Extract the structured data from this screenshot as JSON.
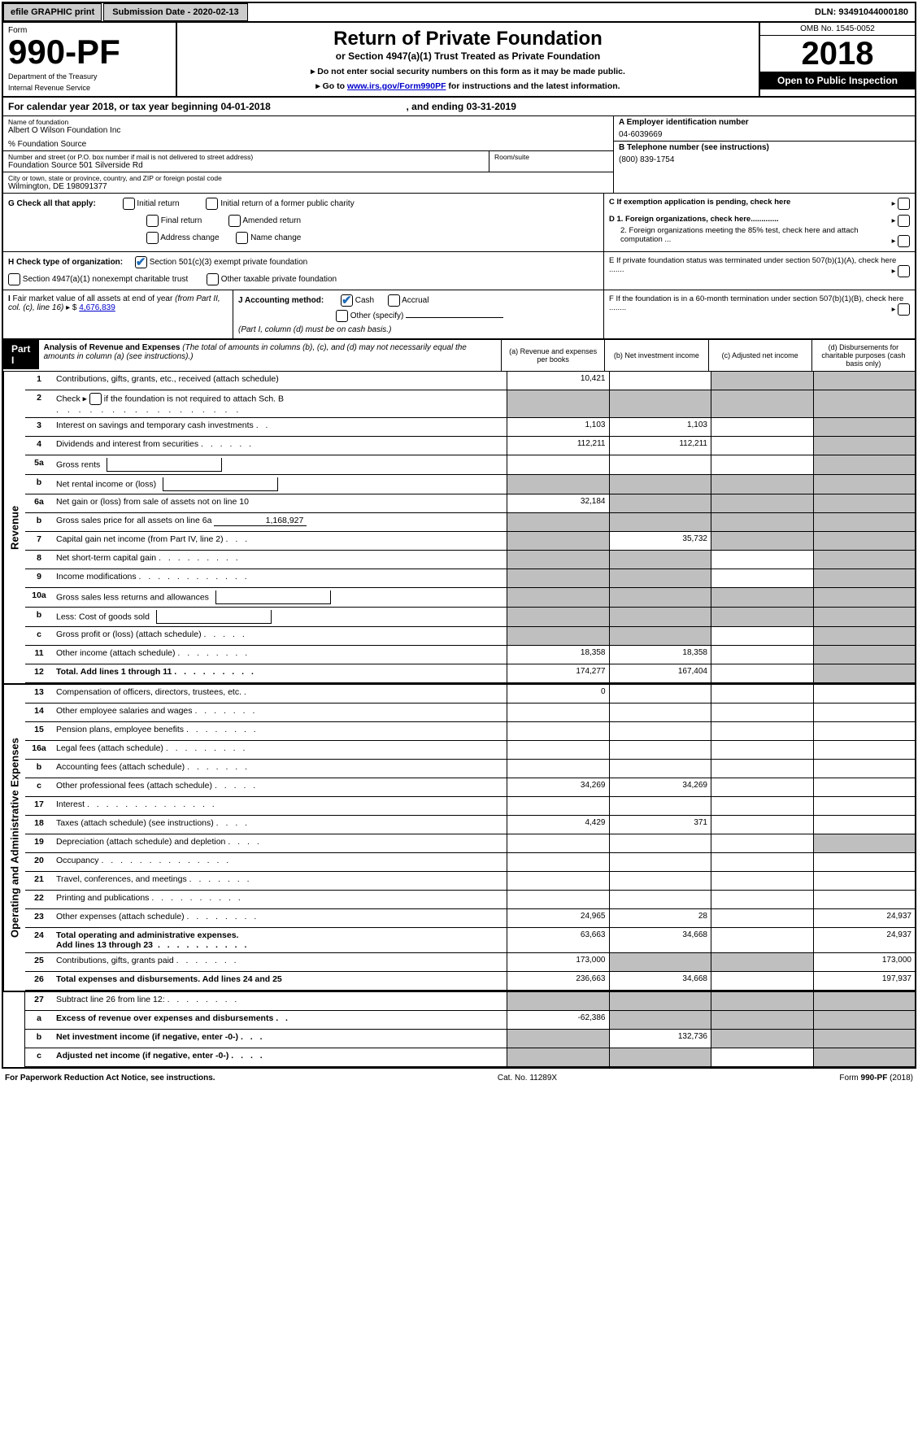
{
  "topbar": {
    "efile": "efile GRAPHIC print",
    "submission_label": "Submission Date - 2020-02-13",
    "dln": "DLN: 93491044000180"
  },
  "header": {
    "form_label": "Form",
    "form_number": "990-PF",
    "dept": "Department of the Treasury",
    "irs": "Internal Revenue Service",
    "title": "Return of Private Foundation",
    "subtitle": "or Section 4947(a)(1) Trust Treated as Private Foundation",
    "instr1": "▸ Do not enter social security numbers on this form as it may be made public.",
    "instr2_pre": "▸ Go to ",
    "instr2_link": "www.irs.gov/Form990PF",
    "instr2_post": " for instructions and the latest information.",
    "omb": "OMB No. 1545-0052",
    "year": "2018",
    "open": "Open to Public Inspection"
  },
  "cal": {
    "text_pre": "For calendar year 2018, or tax year beginning 04-01-2018",
    "text_mid": ", and ending 03-31-2019"
  },
  "entity": {
    "name_lbl": "Name of foundation",
    "name": "Albert O Wilson Foundation Inc",
    "care_of": "% Foundation Source",
    "addr_lbl": "Number and street (or P.O. box number if mail is not delivered to street address)",
    "addr": "Foundation Source 501 Silverside Rd",
    "room_lbl": "Room/suite",
    "city_lbl": "City or town, state or province, country, and ZIP or foreign postal code",
    "city": "Wilmington, DE  198091377",
    "ein_lbl": "A Employer identification number",
    "ein": "04-6039669",
    "phone_lbl": "B Telephone number (see instructions)",
    "phone": "(800) 839-1754",
    "c_text": "C If exemption application is pending, check here",
    "d1": "D 1. Foreign organizations, check here.............",
    "d2": "2. Foreign organizations meeting the 85% test, check here and attach computation ...",
    "e_text": "E  If private foundation status was terminated under section 507(b)(1)(A), check here .......",
    "f_text": "F  If the foundation is in a 60-month termination under section 507(b)(1)(B), check here ........"
  },
  "g": {
    "label": "G Check all that apply:",
    "opts": {
      "initial": "Initial return",
      "initial_former": "Initial return of a former public charity",
      "final": "Final return",
      "amended": "Amended return",
      "addr_change": "Address change",
      "name_change": "Name change"
    }
  },
  "h": {
    "label": "H Check type of organization:",
    "opt1": "Section 501(c)(3) exempt private foundation",
    "opt2": "Section 4947(a)(1) nonexempt charitable trust",
    "opt3": "Other taxable private foundation"
  },
  "i": {
    "label": "I Fair market value of all assets at end of year (from Part II, col. (c), line 16) ▸ $",
    "value": "4,676,839"
  },
  "j": {
    "label": "J Accounting method:",
    "cash": "Cash",
    "accrual": "Accrual",
    "other": "Other (specify)",
    "note": "(Part I, column (d) must be on cash basis.)"
  },
  "part1": {
    "label": "Part I",
    "title": "Analysis of Revenue and Expenses",
    "title_note": "(The total of amounts in columns (b), (c), and (d) may not necessarily equal the amounts in column (a) (see instructions).)",
    "col_a": "(a)   Revenue and expenses per books",
    "col_b": "(b)  Net investment income",
    "col_c": "(c)  Adjusted net income",
    "col_d": "(d)  Disbursements for charitable purposes (cash basis only)"
  },
  "rev_lbl": "Revenue",
  "opex_lbl": "Operating and Administrative Expenses",
  "lines": {
    "l1": {
      "n": "1",
      "d": "Contributions, gifts, grants, etc., received (attach schedule)",
      "a": "10,421"
    },
    "l2": {
      "n": "2",
      "d_pre": "Check ▸ ",
      "d_post": " if the foundation is not required to attach Sch. B",
      "dots": true
    },
    "l3": {
      "n": "3",
      "d": "Interest on savings and temporary cash investments",
      "a": "1,103",
      "b": "1,103"
    },
    "l4": {
      "n": "4",
      "d": "Dividends and interest from securities",
      "a": "112,211",
      "b": "112,211"
    },
    "l5a": {
      "n": "5a",
      "d": "Gross rents"
    },
    "l5b": {
      "n": "b",
      "d": "Net rental income or (loss)"
    },
    "l6a": {
      "n": "6a",
      "d": "Net gain or (loss) from sale of assets not on line 10",
      "a": "32,184"
    },
    "l6b": {
      "n": "b",
      "d": "Gross sales price for all assets on line 6a",
      "val": "1,168,927"
    },
    "l7": {
      "n": "7",
      "d": "Capital gain net income (from Part IV, line 2)",
      "b": "35,732"
    },
    "l8": {
      "n": "8",
      "d": "Net short-term capital gain"
    },
    "l9": {
      "n": "9",
      "d": "Income modifications"
    },
    "l10a": {
      "n": "10a",
      "d": "Gross sales less returns and allowances"
    },
    "l10b": {
      "n": "b",
      "d": "Less: Cost of goods sold"
    },
    "l10c": {
      "n": "c",
      "d": "Gross profit or (loss) (attach schedule)"
    },
    "l11": {
      "n": "11",
      "d": "Other income (attach schedule)",
      "a": "18,358",
      "b": "18,358"
    },
    "l12": {
      "n": "12",
      "d": "Total. Add lines 1 through 11",
      "a": "174,277",
      "b": "167,404",
      "bold": true
    },
    "l13": {
      "n": "13",
      "d": "Compensation of officers, directors, trustees, etc.",
      "a": "0"
    },
    "l14": {
      "n": "14",
      "d": "Other employee salaries and wages"
    },
    "l15": {
      "n": "15",
      "d": "Pension plans, employee benefits"
    },
    "l16a": {
      "n": "16a",
      "d": "Legal fees (attach schedule)"
    },
    "l16b": {
      "n": "b",
      "d": "Accounting fees (attach schedule)"
    },
    "l16c": {
      "n": "c",
      "d": "Other professional fees (attach schedule)",
      "a": "34,269",
      "b": "34,269"
    },
    "l17": {
      "n": "17",
      "d": "Interest"
    },
    "l18": {
      "n": "18",
      "d": "Taxes (attach schedule) (see instructions)",
      "a": "4,429",
      "b": "371"
    },
    "l19": {
      "n": "19",
      "d": "Depreciation (attach schedule) and depletion"
    },
    "l20": {
      "n": "20",
      "d": "Occupancy"
    },
    "l21": {
      "n": "21",
      "d": "Travel, conferences, and meetings"
    },
    "l22": {
      "n": "22",
      "d": "Printing and publications"
    },
    "l23": {
      "n": "23",
      "d": "Other expenses (attach schedule)",
      "a": "24,965",
      "b": "28",
      "dd": "24,937"
    },
    "l24": {
      "n": "24",
      "d": "Total operating and administrative expenses.",
      "d2": "Add lines 13 through 23",
      "a": "63,663",
      "b": "34,668",
      "dd": "24,937",
      "bold": true
    },
    "l25": {
      "n": "25",
      "d": "Contributions, gifts, grants paid",
      "a": "173,000",
      "dd": "173,000"
    },
    "l26": {
      "n": "26",
      "d": "Total expenses and disbursements. Add lines 24 and 25",
      "a": "236,663",
      "b": "34,668",
      "dd": "197,937",
      "bold": true
    },
    "l27": {
      "n": "27",
      "d": "Subtract line 26 from line 12:"
    },
    "l27a": {
      "n": "a",
      "d": "Excess of revenue over expenses and disbursements",
      "a": "-62,386",
      "bold": true
    },
    "l27b": {
      "n": "b",
      "d": "Net investment income (if negative, enter -0-)",
      "b": "132,736",
      "bold": true
    },
    "l27c": {
      "n": "c",
      "d": "Adjusted net income (if negative, enter -0-)",
      "bold": true
    }
  },
  "footer": {
    "left": "For Paperwork Reduction Act Notice, see instructions.",
    "mid": "Cat. No. 11289X",
    "right": "Form 990-PF (2018)"
  }
}
